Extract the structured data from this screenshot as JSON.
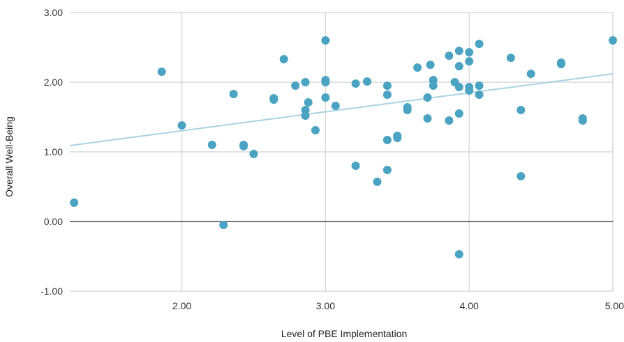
{
  "chart_data": {
    "type": "scatter",
    "xlabel": "Level of PBE Implementation",
    "ylabel": "Overall Well-Being",
    "xlim": [
      1.22,
      5.0
    ],
    "ylim": [
      -1.0,
      3.0
    ],
    "x_ticks": [
      "2.00",
      "3.00",
      "4.00",
      "5.00"
    ],
    "x_tick_values": [
      2,
      3,
      4,
      5
    ],
    "y_ticks": [
      "3.00",
      "2.00",
      "1.00",
      "0.00",
      "-1.00"
    ],
    "y_tick_values": [
      3,
      2,
      1,
      0,
      -1
    ],
    "grid": true,
    "trendline": {
      "x": [
        1.22,
        5.0
      ],
      "y": [
        1.09,
        2.12
      ]
    },
    "colors": {
      "point": "#4aa3c2",
      "trendline": "#a9d3e3",
      "grid": "#d9d9d9",
      "zero_line": "#444444"
    },
    "points": [
      {
        "x": 1.25,
        "y": 0.27
      },
      {
        "x": 1.86,
        "y": 2.15
      },
      {
        "x": 2.0,
        "y": 1.38
      },
      {
        "x": 2.21,
        "y": 1.1
      },
      {
        "x": 2.29,
        "y": -0.05
      },
      {
        "x": 2.36,
        "y": 1.83
      },
      {
        "x": 2.43,
        "y": 1.1
      },
      {
        "x": 2.43,
        "y": 1.08
      },
      {
        "x": 2.5,
        "y": 0.97
      },
      {
        "x": 2.64,
        "y": 1.75
      },
      {
        "x": 2.64,
        "y": 1.77
      },
      {
        "x": 2.71,
        "y": 2.33
      },
      {
        "x": 2.79,
        "y": 1.95
      },
      {
        "x": 2.86,
        "y": 2.0
      },
      {
        "x": 2.86,
        "y": 1.6
      },
      {
        "x": 2.86,
        "y": 1.52
      },
      {
        "x": 2.88,
        "y": 1.71
      },
      {
        "x": 2.93,
        "y": 1.31
      },
      {
        "x": 3.0,
        "y": 2.6
      },
      {
        "x": 3.0,
        "y": 2.03
      },
      {
        "x": 3.0,
        "y": 2.0
      },
      {
        "x": 3.0,
        "y": 1.78
      },
      {
        "x": 3.07,
        "y": 1.66
      },
      {
        "x": 3.21,
        "y": 1.98
      },
      {
        "x": 3.21,
        "y": 0.8
      },
      {
        "x": 3.29,
        "y": 2.01
      },
      {
        "x": 3.36,
        "y": 0.57
      },
      {
        "x": 3.43,
        "y": 1.95
      },
      {
        "x": 3.43,
        "y": 1.82
      },
      {
        "x": 3.43,
        "y": 1.17
      },
      {
        "x": 3.43,
        "y": 0.74
      },
      {
        "x": 3.5,
        "y": 1.23
      },
      {
        "x": 3.5,
        "y": 1.2
      },
      {
        "x": 3.57,
        "y": 1.64
      },
      {
        "x": 3.57,
        "y": 1.6
      },
      {
        "x": 3.64,
        "y": 2.21
      },
      {
        "x": 3.71,
        "y": 1.78
      },
      {
        "x": 3.71,
        "y": 1.48
      },
      {
        "x": 3.73,
        "y": 2.25
      },
      {
        "x": 3.75,
        "y": 2.03
      },
      {
        "x": 3.75,
        "y": 1.95
      },
      {
        "x": 3.86,
        "y": 2.38
      },
      {
        "x": 3.86,
        "y": 1.45
      },
      {
        "x": 3.9,
        "y": 2.0
      },
      {
        "x": 3.93,
        "y": 2.45
      },
      {
        "x": 3.93,
        "y": 2.23
      },
      {
        "x": 3.93,
        "y": 1.93
      },
      {
        "x": 3.93,
        "y": 1.55
      },
      {
        "x": 3.93,
        "y": -0.47
      },
      {
        "x": 4.0,
        "y": 2.43
      },
      {
        "x": 4.0,
        "y": 2.3
      },
      {
        "x": 4.0,
        "y": 1.93
      },
      {
        "x": 4.0,
        "y": 1.88
      },
      {
        "x": 4.07,
        "y": 2.55
      },
      {
        "x": 4.07,
        "y": 1.95
      },
      {
        "x": 4.07,
        "y": 1.82
      },
      {
        "x": 4.29,
        "y": 2.35
      },
      {
        "x": 4.36,
        "y": 1.6
      },
      {
        "x": 4.36,
        "y": 0.65
      },
      {
        "x": 4.43,
        "y": 2.12
      },
      {
        "x": 4.64,
        "y": 2.28
      },
      {
        "x": 4.64,
        "y": 2.26
      },
      {
        "x": 4.79,
        "y": 1.48
      },
      {
        "x": 4.79,
        "y": 1.45
      },
      {
        "x": 5.0,
        "y": 2.6
      }
    ]
  }
}
